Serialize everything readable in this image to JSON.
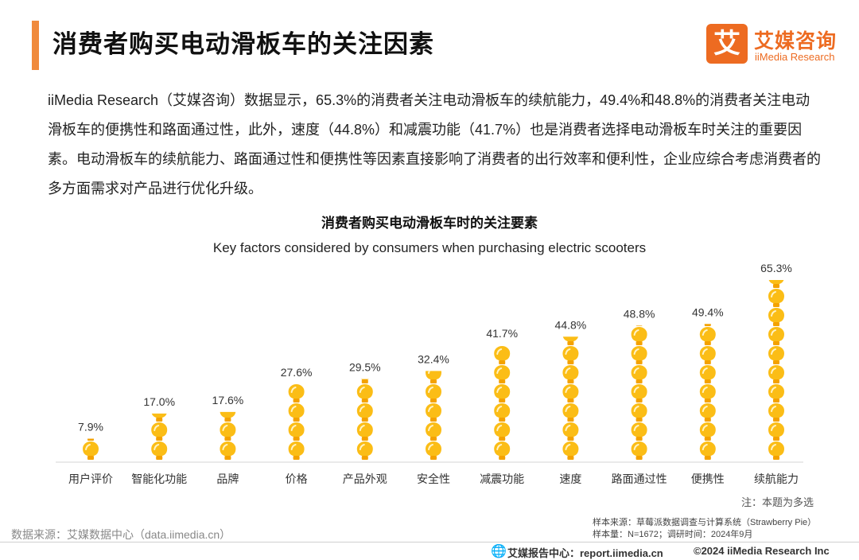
{
  "header": {
    "title": "消费者购买电动滑板车的关注因素",
    "brand_char": "艾",
    "brand_cn": "艾媒咨询",
    "brand_en": "iiMedia Research"
  },
  "intro": "iiMedia Research（艾媒咨询）数据显示，65.3%的消费者关注电动滑板车的续航能力，49.4%和48.8%的消费者关注电动滑板车的便携性和路面通过性，此外，速度（44.8%）和减震功能（41.7%）也是消费者选择电动滑板车时关注的重要因素。电动滑板车的续航能力、路面通过性和便携性等因素直接影响了消费者的出行效率和便利性，企业应综合考虑消费者的多方面需求对产品进行优化升级。",
  "colors": {
    "accent": "#f08a3c",
    "brand": "#ed6b21",
    "bulb": "#fbbd16",
    "bulb_base": "#f4a200"
  },
  "chart_data": {
    "type": "bar",
    "style": "pictogram-lightbulb",
    "title": "消费者购买电动滑板车时的关注要素",
    "subtitle": "Key factors considered by consumers when purchasing electric scooters",
    "categories": [
      "用户评价",
      "智能化功能",
      "品牌",
      "价格",
      "产品外观",
      "安全性",
      "减震功能",
      "速度",
      "路面通过性",
      "便携性",
      "续航能力"
    ],
    "values": [
      7.9,
      17.0,
      17.6,
      27.6,
      29.5,
      32.4,
      41.7,
      44.8,
      48.8,
      49.4,
      65.3
    ],
    "value_labels": [
      "7.9%",
      "17.0%",
      "17.6%",
      "27.6%",
      "29.5%",
      "32.4%",
      "41.7%",
      "44.8%",
      "48.8%",
      "49.4%",
      "65.3%"
    ],
    "unit": "%",
    "ylim": [
      0,
      65.3
    ],
    "grid": false,
    "legend": "none",
    "note": "注：本题为多选"
  },
  "footer": {
    "data_source": "数据来源：艾媒数据中心（data.iimedia.cn）",
    "sample_source": "样本来源：草莓派数据调查与计算系统（Strawberry Pie）",
    "sample_size": "样本量：N=1672；调研时间：2024年9月",
    "report_center": "艾媒报告中心：report.iimedia.cn",
    "copyright": "©2024  iiMedia Research  Inc"
  }
}
